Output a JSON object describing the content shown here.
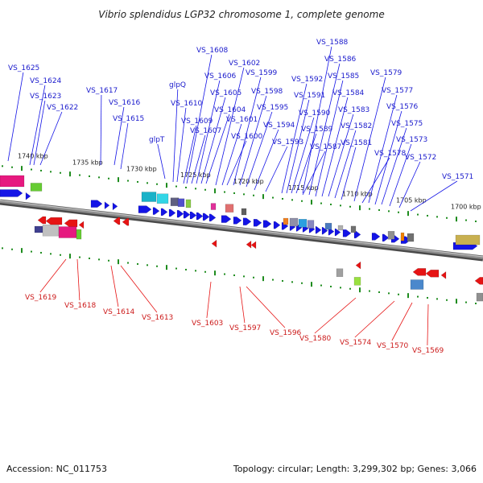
{
  "title": "Vibrio splendidus LGP32 chromosome 1, complete genome",
  "footer": {
    "accession": "Accession: NC_011753",
    "summary": "Topology: circular; Length: 3,299,302 bp; Genes: 3,066"
  },
  "colors": {
    "forward_label": "#1a1acc",
    "reverse_label": "#cc1a1a",
    "forward_gene": "#1414e6",
    "reverse_gene": "#e61414",
    "backbone": "#8c8c8c",
    "tick": "#1e8c1e"
  },
  "scale_labels": [
    "1740 kbp",
    "1735 kbp",
    "1730 kbp",
    "1725 kbp",
    "1720 kbp",
    "1715 kbp",
    "1710 kbp",
    "1705 kbp",
    "1700 kbp"
  ],
  "forward_labels": [
    "VS_1625",
    "VS_1624",
    "VS_1623",
    "VS_1622",
    "VS_1617",
    "VS_1616",
    "VS_1615",
    "glpT",
    "glpQ",
    "VS_1610",
    "VS_1609",
    "VS_1608",
    "VS_1607",
    "VS_1606",
    "VS_1605",
    "VS_1604",
    "VS_1602",
    "VS_1601",
    "VS_1600",
    "VS_1599",
    "VS_1598",
    "VS_1595",
    "VS_1594",
    "VS_1593",
    "VS_1592",
    "VS_1591",
    "VS_1590",
    "VS_1589",
    "VS_1588",
    "VS_1587",
    "VS_1586",
    "VS_1585",
    "VS_1584",
    "VS_1583",
    "VS_1582",
    "VS_1581",
    "VS_1579",
    "VS_1578",
    "VS_1577",
    "VS_1576",
    "VS_1575",
    "VS_1573",
    "VS_1572",
    "VS_1571"
  ],
  "reverse_labels": [
    "VS_1619",
    "VS_1618",
    "VS_1614",
    "VS_1613",
    "VS_1603",
    "VS_1597",
    "VS_1596",
    "VS_1580",
    "VS_1574",
    "VS_1570",
    "VS_1569"
  ]
}
